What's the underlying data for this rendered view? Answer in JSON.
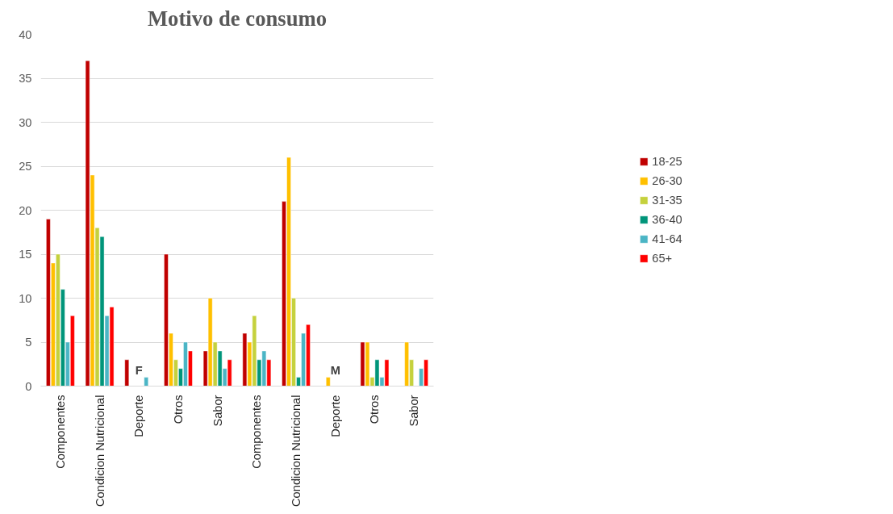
{
  "chart_data": {
    "type": "bar",
    "title": "Motivo de consumo",
    "categories": [
      "Componentes",
      "Condicion Nutricional",
      "Deporte",
      "Otros",
      "Sabor",
      "Componentes",
      "Condicion Nutricional",
      "Deporte",
      "Otros",
      "Sabor"
    ],
    "annotations": [
      "F",
      "M"
    ],
    "series": [
      {
        "name": "18-25",
        "color": "#c00000",
        "values": [
          19,
          37,
          3,
          15,
          4,
          6,
          21,
          null,
          5,
          null
        ]
      },
      {
        "name": "26-30",
        "color": "#ffc000",
        "values": [
          14,
          24,
          null,
          6,
          10,
          5,
          26,
          1,
          5,
          5
        ]
      },
      {
        "name": "31-35",
        "color": "#c5d13d",
        "values": [
          15,
          18,
          null,
          3,
          5,
          8,
          10,
          null,
          1,
          3
        ]
      },
      {
        "name": "36-40",
        "color": "#00957a",
        "values": [
          11,
          17,
          null,
          2,
          4,
          3,
          1,
          null,
          3,
          null
        ]
      },
      {
        "name": "41-64",
        "color": "#4bb5c5",
        "values": [
          5,
          8,
          1,
          5,
          2,
          4,
          6,
          null,
          1,
          2
        ]
      },
      {
        "name": "65+",
        "color": "#ff0000",
        "values": [
          8,
          9,
          null,
          4,
          3,
          3,
          7,
          null,
          3,
          3
        ]
      }
    ],
    "ylim": [
      0,
      40
    ],
    "yticks": [
      0,
      5,
      10,
      15,
      20,
      25,
      30,
      35,
      40
    ],
    "grid": "y",
    "legend": "right"
  }
}
